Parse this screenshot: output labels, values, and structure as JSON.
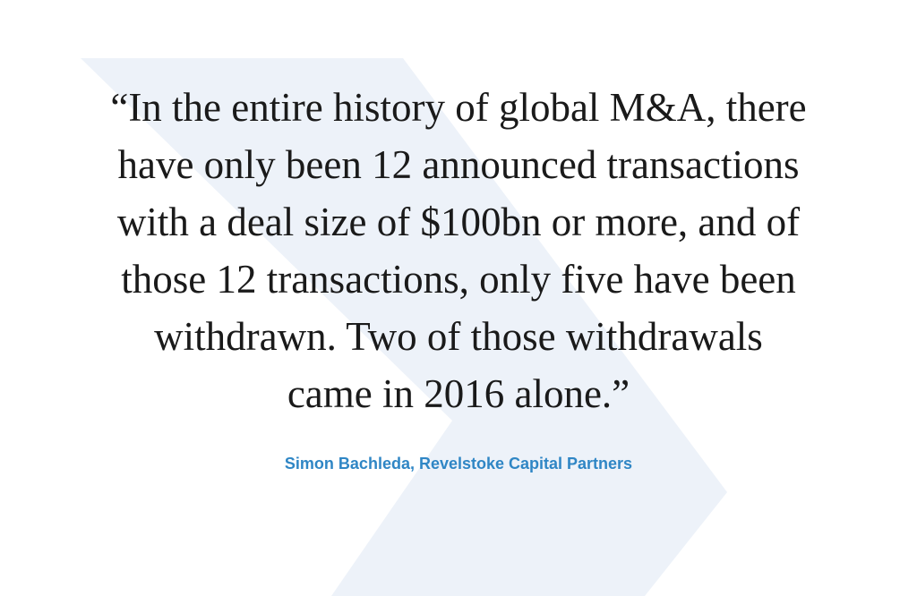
{
  "quote": {
    "lines": [
      "“In the entire history of global M&A, there",
      "have only been 12 announced transactions",
      "with a deal size of $100bn or more, and of",
      "those 12 transactions, only five have been",
      "withdrawn. Two of those withdrawals",
      "came in 2016 alone.”"
    ],
    "attribution": "Simon Bachleda, Revelstoke Capital Partners"
  }
}
